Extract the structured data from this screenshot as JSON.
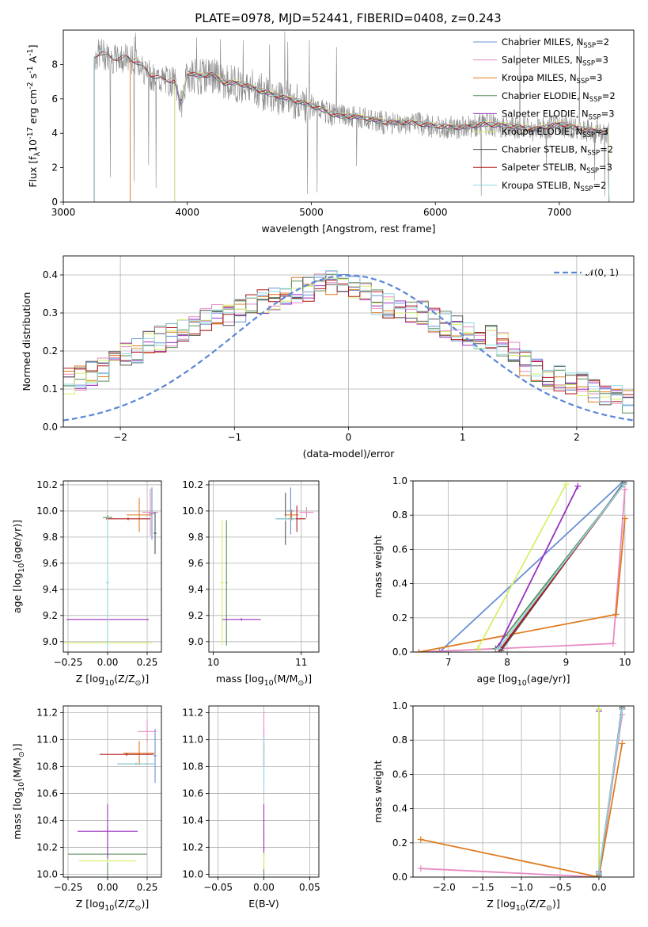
{
  "title": "PLATE=0978, MJD=52441, FIBERID=0408, z=0.243",
  "colors": {
    "chabrier_miles": "#6a8fd6",
    "salpeter_miles": "#e78ac3",
    "kroupa_miles": "#e07b1f",
    "chabrier_elodie": "#5d8f5d",
    "salpeter_elodie": "#9b30c0",
    "kroupa_elodie": "#d6f06a",
    "chabrier_stelib": "#555555",
    "salpeter_stelib": "#b01818",
    "kroupa_stelib": "#8fd8e0",
    "data": "#8a8a8a",
    "normal": "#5b87d6"
  },
  "chart_data": [
    {
      "id": "spectrum",
      "type": "line",
      "title": "PLATE=0978, MJD=52441, FIBERID=0408, z=0.243",
      "xlabel": "wavelength [Angstrom, rest frame]",
      "ylabel": "Flux [f$_\\lambda$10$^{-17}$ erg cm$^{-2}$ s$^{-1}$ A$^{-1}$]",
      "xlim": [
        3000,
        7600
      ],
      "ylim": [
        0,
        10
      ],
      "xticks": [
        "3000",
        "4000",
        "5000",
        "6000",
        "7000"
      ],
      "yticks": [
        "0",
        "2",
        "4",
        "6",
        "8"
      ],
      "legend_position": "top-right",
      "series": [
        {
          "name": "Chabrier MILES, N",
          "sub": "SSP",
          "suffix": "=2",
          "color": "#6a8fd6"
        },
        {
          "name": "Salpeter MILES, N",
          "sub": "SSP",
          "suffix": "=3",
          "color": "#e78ac3"
        },
        {
          "name": "Kroupa MILES, N",
          "sub": "SSP",
          "suffix": "=3",
          "color": "#e07b1f"
        },
        {
          "name": "Chabrier ELODIE, N",
          "sub": "SSP",
          "suffix": "=2",
          "color": "#5d8f5d"
        },
        {
          "name": "Salpeter ELODIE, N",
          "sub": "SSP",
          "suffix": "=3",
          "color": "#9b30c0"
        },
        {
          "name": "Kroupa ELODIE, N",
          "sub": "SSP",
          "suffix": "=3",
          "color": "#d6f06a"
        },
        {
          "name": "Chabrier STELIB, N",
          "sub": "SSP",
          "suffix": "=2",
          "color": "#555555"
        },
        {
          "name": "Salpeter STELIB, N",
          "sub": "SSP",
          "suffix": "=3",
          "color": "#b01818"
        },
        {
          "name": "Kroupa STELIB, N",
          "sub": "SSP",
          "suffix": "=2",
          "color": "#8fd8e0"
        }
      ],
      "model_start_wavelength": {
        "chabrier_miles": 3540,
        "salpeter_miles": 3540,
        "kroupa_miles": 3540,
        "elodie": 3900,
        "stelib": 3250
      },
      "continuum": {
        "x": [
          3250,
          3300,
          3400,
          3500,
          3600,
          3700,
          3800,
          3900,
          3950,
          4000,
          4100,
          4200,
          4300,
          4400,
          4500,
          4600,
          4800,
          5000,
          5200,
          5400,
          5600,
          5800,
          6000,
          6200,
          6400,
          6600,
          6800,
          7000,
          7200,
          7400
        ],
        "y": [
          8.4,
          8.7,
          8.3,
          8.4,
          8.1,
          7.4,
          7.1,
          7.0,
          5.6,
          7.5,
          7.3,
          7.4,
          6.9,
          6.9,
          6.7,
          6.4,
          6.0,
          5.6,
          5.0,
          4.9,
          4.6,
          4.6,
          4.4,
          4.3,
          4.5,
          4.4,
          4.2,
          4.5,
          4.2,
          4.0
        ]
      }
    },
    {
      "id": "residuals",
      "type": "line",
      "xlabel": "(data-model)/error",
      "ylabel": "Normed distribution",
      "xlim": [
        -2.5,
        2.5
      ],
      "ylim": [
        0,
        0.45
      ],
      "xticks": [
        "−2",
        "−1",
        "0",
        "1",
        "2"
      ],
      "yticks": [
        "0.0",
        "0.1",
        "0.2",
        "0.3",
        "0.4"
      ],
      "legend": "𝒩(0, 1)",
      "legend_position": "top-right",
      "normal_mean": 0,
      "normal_sigma": 1,
      "bin_width": 0.1,
      "bin_start": -2.5,
      "envelope": [
        0.12,
        0.13,
        0.14,
        0.15,
        0.17,
        0.19,
        0.2,
        0.22,
        0.23,
        0.24,
        0.25,
        0.26,
        0.28,
        0.29,
        0.3,
        0.31,
        0.32,
        0.33,
        0.34,
        0.35,
        0.36,
        0.36,
        0.37,
        0.38,
        0.38,
        0.37,
        0.35,
        0.33,
        0.32,
        0.31,
        0.3,
        0.3,
        0.28,
        0.27,
        0.26,
        0.25,
        0.24,
        0.24,
        0.22,
        0.2,
        0.17,
        0.15,
        0.14,
        0.13,
        0.12,
        0.11,
        0.1,
        0.09,
        0.08,
        0.07
      ]
    },
    {
      "id": "age_vs_Z",
      "type": "scatter",
      "xlabel": "Z [log$_{10}$(Z/Z$_\\odot$)]",
      "ylabel": "age  [log$_{10}$(age/yr)]",
      "xlim": [
        -0.28,
        0.34
      ],
      "ylim": [
        8.92,
        10.23
      ],
      "xticks": [
        "−0.25",
        "0.00",
        "0.25"
      ],
      "yticks": [
        "9.0",
        "9.2",
        "9.4",
        "9.6",
        "9.8",
        "10.0",
        "10.2"
      ],
      "points": [
        {
          "model": "chabrier_miles",
          "x": 0.28,
          "y": 9.98,
          "xerr": 0.02,
          "yerr": 0.2
        },
        {
          "model": "salpeter_miles",
          "x": 0.27,
          "y": 9.99,
          "xerr": 0.05,
          "yerr": 0.18
        },
        {
          "model": "kroupa_miles",
          "x": 0.2,
          "y": 9.97,
          "xerr": 0.08,
          "yerr": 0.13
        },
        {
          "model": "chabrier_elodie",
          "x": 0.0,
          "y": 9.95,
          "xerr": 0.03,
          "yerr": 0.02
        },
        {
          "model": "salpeter_elodie",
          "x": 0.0,
          "y": 9.17,
          "xerr": 0.26,
          "yerr": 0.01
        },
        {
          "model": "kroupa_elodie",
          "x": 0.0,
          "y": 8.99,
          "xerr": 0.28,
          "yerr": 0.01
        },
        {
          "model": "chabrier_stelib",
          "x": 0.3,
          "y": 9.83,
          "xerr": 0.01,
          "yerr": 0.16
        },
        {
          "model": "salpeter_stelib",
          "x": 0.13,
          "y": 9.94,
          "xerr": 0.14,
          "yerr": 0.01
        },
        {
          "model": "kroupa_stelib",
          "x": 0.0,
          "y": 9.45,
          "xerr": 0.01,
          "yerr": 0.5
        }
      ]
    },
    {
      "id": "age_vs_mass",
      "type": "scatter",
      "xlabel": "mass [log$_{10}$(M/M$_\\odot$)]",
      "xlim": [
        9.95,
        11.2
      ],
      "ylim": [
        8.92,
        10.23
      ],
      "xticks": [
        "10",
        "11"
      ],
      "yticks": [
        "9.0",
        "9.2",
        "9.4",
        "9.6",
        "9.8",
        "10.0",
        "10.2"
      ],
      "points": [
        {
          "model": "chabrier_miles",
          "x": 10.88,
          "y": 10.0,
          "xerr": 0.04,
          "yerr": 0.18
        },
        {
          "model": "salpeter_miles",
          "x": 11.06,
          "y": 9.99,
          "xerr": 0.08,
          "yerr": 0.04
        },
        {
          "model": "kroupa_miles",
          "x": 10.89,
          "y": 9.97,
          "xerr": 0.08,
          "yerr": 0.04
        },
        {
          "model": "chabrier_elodie",
          "x": 10.15,
          "y": 9.45,
          "xerr": 0.01,
          "yerr": 0.48
        },
        {
          "model": "salpeter_elodie",
          "x": 10.32,
          "y": 9.17,
          "xerr": 0.22,
          "yerr": 0.01
        },
        {
          "model": "kroupa_elodie",
          "x": 10.1,
          "y": 9.45,
          "xerr": 0.02,
          "yerr": 0.48
        },
        {
          "model": "chabrier_stelib",
          "x": 10.82,
          "y": 9.94,
          "xerr": 0.1,
          "yerr": 0.2
        },
        {
          "model": "salpeter_stelib",
          "x": 10.95,
          "y": 9.94,
          "xerr": 0.1,
          "yerr": 0.1
        },
        {
          "model": "kroupa_stelib",
          "x": 10.82,
          "y": 9.94,
          "xerr": 0.12,
          "yerr": 0.02
        }
      ]
    },
    {
      "id": "mass_weight_vs_age",
      "type": "line",
      "xlabel": "age  [log$_{10}$(age/yr)]",
      "ylabel": "mass weight",
      "xlim": [
        6.4,
        10.15
      ],
      "ylim": [
        0,
        1
      ],
      "xticks": [
        "7",
        "8",
        "9",
        "10"
      ],
      "yticks": [
        "0.0",
        "0.2",
        "0.4",
        "0.6",
        "0.8",
        "1.0"
      ],
      "series": [
        {
          "model": "chabrier_miles",
          "x": [
            6.85,
            9.98
          ],
          "y": [
            0.0,
            1.0
          ]
        },
        {
          "model": "salpeter_miles",
          "x": [
            6.5,
            9.8,
            10.0
          ],
          "y": [
            0.0,
            0.05,
            0.95
          ]
        },
        {
          "model": "kroupa_miles",
          "x": [
            6.5,
            9.85,
            10.0
          ],
          "y": [
            0.0,
            0.22,
            0.78
          ]
        },
        {
          "model": "chabrier_elodie",
          "x": [
            7.8,
            9.98
          ],
          "y": [
            0.02,
            0.98
          ]
        },
        {
          "model": "salpeter_elodie",
          "x": [
            7.85,
            9.2
          ],
          "y": [
            0.03,
            0.97
          ]
        },
        {
          "model": "kroupa_elodie",
          "x": [
            7.5,
            9.0
          ],
          "y": [
            0.02,
            0.98
          ]
        },
        {
          "model": "chabrier_stelib",
          "x": [
            7.9,
            9.98
          ],
          "y": [
            0.01,
            0.99
          ]
        },
        {
          "model": "salpeter_stelib",
          "x": [
            7.85,
            9.98
          ],
          "y": [
            0.0,
            0.98
          ]
        },
        {
          "model": "kroupa_stelib",
          "x": [
            7.85,
            9.98
          ],
          "y": [
            0.02,
            0.98
          ]
        }
      ]
    },
    {
      "id": "mass_vs_Z",
      "type": "scatter",
      "xlabel": "Z [log$_{10}$(Z/Z$_\\odot$)]",
      "ylabel": "mass [log$_{10}$(M/M$_\\odot$)]",
      "xlim": [
        -0.28,
        0.34
      ],
      "ylim": [
        9.98,
        11.25
      ],
      "xticks": [
        "−0.25",
        "0.00",
        "0.25"
      ],
      "yticks": [
        "10.0",
        "10.2",
        "10.4",
        "10.6",
        "10.8",
        "11.0",
        "11.2"
      ],
      "points": [
        {
          "model": "chabrier_miles",
          "x": 0.3,
          "y": 10.88,
          "xerr": 0.01,
          "yerr": 0.2
        },
        {
          "model": "salpeter_miles",
          "x": 0.25,
          "y": 11.06,
          "xerr": 0.06,
          "yerr": 0.08
        },
        {
          "model": "kroupa_miles",
          "x": 0.2,
          "y": 10.9,
          "xerr": 0.1,
          "yerr": 0.09
        },
        {
          "model": "chabrier_elodie",
          "x": 0.0,
          "y": 10.15,
          "xerr": 0.25,
          "yerr": 0.2
        },
        {
          "model": "salpeter_elodie",
          "x": 0.0,
          "y": 10.32,
          "xerr": 0.19,
          "yerr": 0.2
        },
        {
          "model": "kroupa_elodie",
          "x": 0.0,
          "y": 10.1,
          "xerr": 0.18,
          "yerr": 0.01
        },
        {
          "model": "chabrier_stelib",
          "x": 0.18,
          "y": 10.82,
          "xerr": 0.12,
          "yerr": 0.01
        },
        {
          "model": "salpeter_stelib",
          "x": 0.12,
          "y": 10.89,
          "xerr": 0.17,
          "yerr": 0.01
        },
        {
          "model": "kroupa_stelib",
          "x": 0.18,
          "y": 10.82,
          "xerr": 0.12,
          "yerr": 0.01
        }
      ]
    },
    {
      "id": "mass_vs_EBV",
      "type": "scatter",
      "xlabel": "E(B-V)",
      "xlim": [
        -0.06,
        0.06
      ],
      "ylim": [
        9.98,
        11.25
      ],
      "xticks": [
        "−0.05",
        "0.00",
        "0.05"
      ],
      "yticks": [
        "10.0",
        "10.2",
        "10.4",
        "10.6",
        "10.8",
        "11.0",
        "11.2"
      ],
      "points": [
        {
          "model": "chabrier_miles",
          "x": 0.0,
          "y": 10.88,
          "xerr": 0.0,
          "yerr": 0.2
        },
        {
          "model": "salpeter_miles",
          "x": 0.0,
          "y": 11.06,
          "xerr": 0.0,
          "yerr": 0.15
        },
        {
          "model": "kroupa_miles",
          "x": 0.0,
          "y": 10.9,
          "xerr": 0.0,
          "yerr": 0.09
        },
        {
          "model": "chabrier_elodie",
          "x": 0.0,
          "y": 10.15,
          "xerr": 0.0,
          "yerr": 0.2
        },
        {
          "model": "salpeter_elodie",
          "x": 0.0,
          "y": 10.32,
          "xerr": 0.0,
          "yerr": 0.2
        },
        {
          "model": "kroupa_elodie",
          "x": 0.0,
          "y": 10.1,
          "xerr": 0.0,
          "yerr": 0.06
        },
        {
          "model": "chabrier_stelib",
          "x": 0.0,
          "y": 10.82,
          "xerr": 0.0,
          "yerr": 0.01
        },
        {
          "model": "salpeter_stelib",
          "x": 0.0,
          "y": 10.89,
          "xerr": 0.0,
          "yerr": 0.08
        },
        {
          "model": "kroupa_stelib",
          "x": 0.0,
          "y": 10.82,
          "xerr": 0.0,
          "yerr": 0.2
        }
      ]
    },
    {
      "id": "mass_weight_vs_Z",
      "type": "line",
      "xlabel": "Z [log$_{10}$(Z/Z$_\\odot$)]",
      "ylabel": "mass weight",
      "xlim": [
        -2.4,
        0.45
      ],
      "ylim": [
        0,
        1
      ],
      "xticks": [
        "−2.0",
        "−1.5",
        "−1.0",
        "−0.5",
        "0.0"
      ],
      "yticks": [
        "0.0",
        "0.2",
        "0.4",
        "0.6",
        "0.8",
        "1.0"
      ],
      "series": [
        {
          "model": "chabrier_miles",
          "x": [
            0.0,
            0.3
          ],
          "y": [
            0.0,
            1.0
          ]
        },
        {
          "model": "salpeter_miles",
          "x": [
            -2.3,
            0.0,
            0.3
          ],
          "y": [
            0.05,
            0.0,
            0.95
          ]
        },
        {
          "model": "kroupa_miles",
          "x": [
            -2.3,
            0.0,
            0.3
          ],
          "y": [
            0.22,
            0.0,
            0.78
          ]
        },
        {
          "model": "chabrier_elodie",
          "x": [
            0.0,
            0.0
          ],
          "y": [
            0.02,
            0.98
          ]
        },
        {
          "model": "salpeter_elodie",
          "x": [
            0.0,
            0.0
          ],
          "y": [
            0.03,
            0.97
          ]
        },
        {
          "model": "kroupa_elodie",
          "x": [
            0.0,
            0.0
          ],
          "y": [
            0.02,
            0.98
          ]
        },
        {
          "model": "chabrier_stelib",
          "x": [
            0.0,
            0.3
          ],
          "y": [
            0.01,
            0.99
          ]
        },
        {
          "model": "salpeter_stelib",
          "x": [
            0.0,
            0.3
          ],
          "y": [
            0.02,
            0.98
          ]
        },
        {
          "model": "kroupa_stelib",
          "x": [
            0.0,
            0.3
          ],
          "y": [
            0.02,
            0.98
          ]
        }
      ]
    }
  ]
}
